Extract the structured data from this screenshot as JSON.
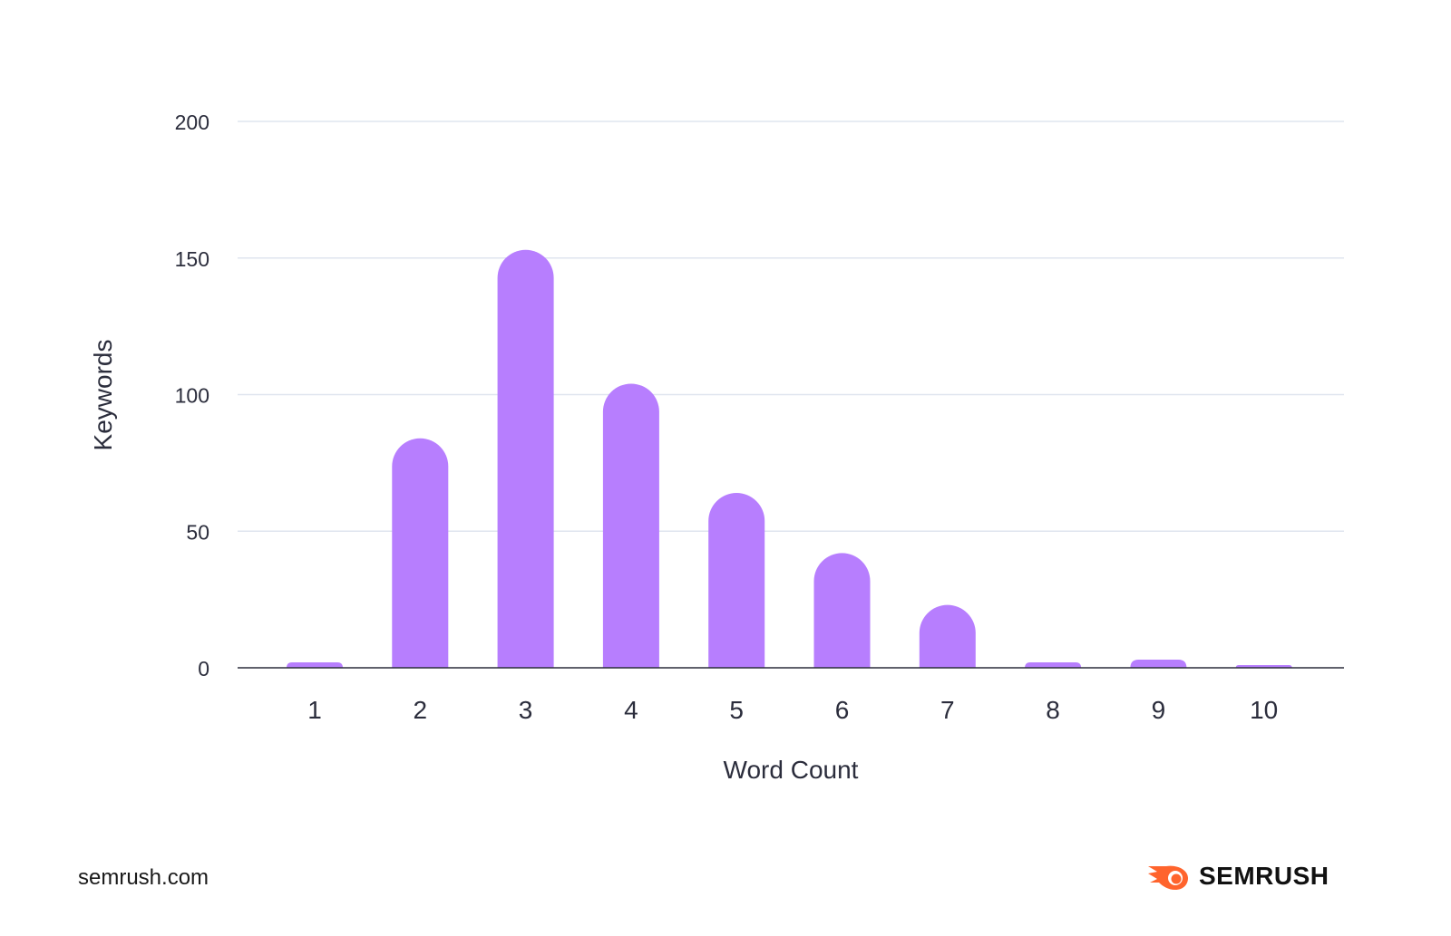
{
  "chart_data": {
    "type": "bar",
    "title": "",
    "xlabel": "Word Count",
    "ylabel": "Keywords",
    "categories": [
      "1",
      "2",
      "3",
      "4",
      "5",
      "6",
      "7",
      "8",
      "9",
      "10"
    ],
    "values": [
      2,
      84,
      153,
      104,
      64,
      42,
      23,
      2,
      3,
      1
    ],
    "ylim": [
      0,
      200
    ],
    "yticks": [
      0,
      50,
      100,
      150,
      200
    ],
    "grid": true,
    "bar_color": "#b77efe",
    "grid_color": "#dfe5ef",
    "axis_color": "#2b2d3c"
  },
  "footer": {
    "source": "semrush.com",
    "brand": "SEMRUSH",
    "brand_color": "#ff642d"
  }
}
